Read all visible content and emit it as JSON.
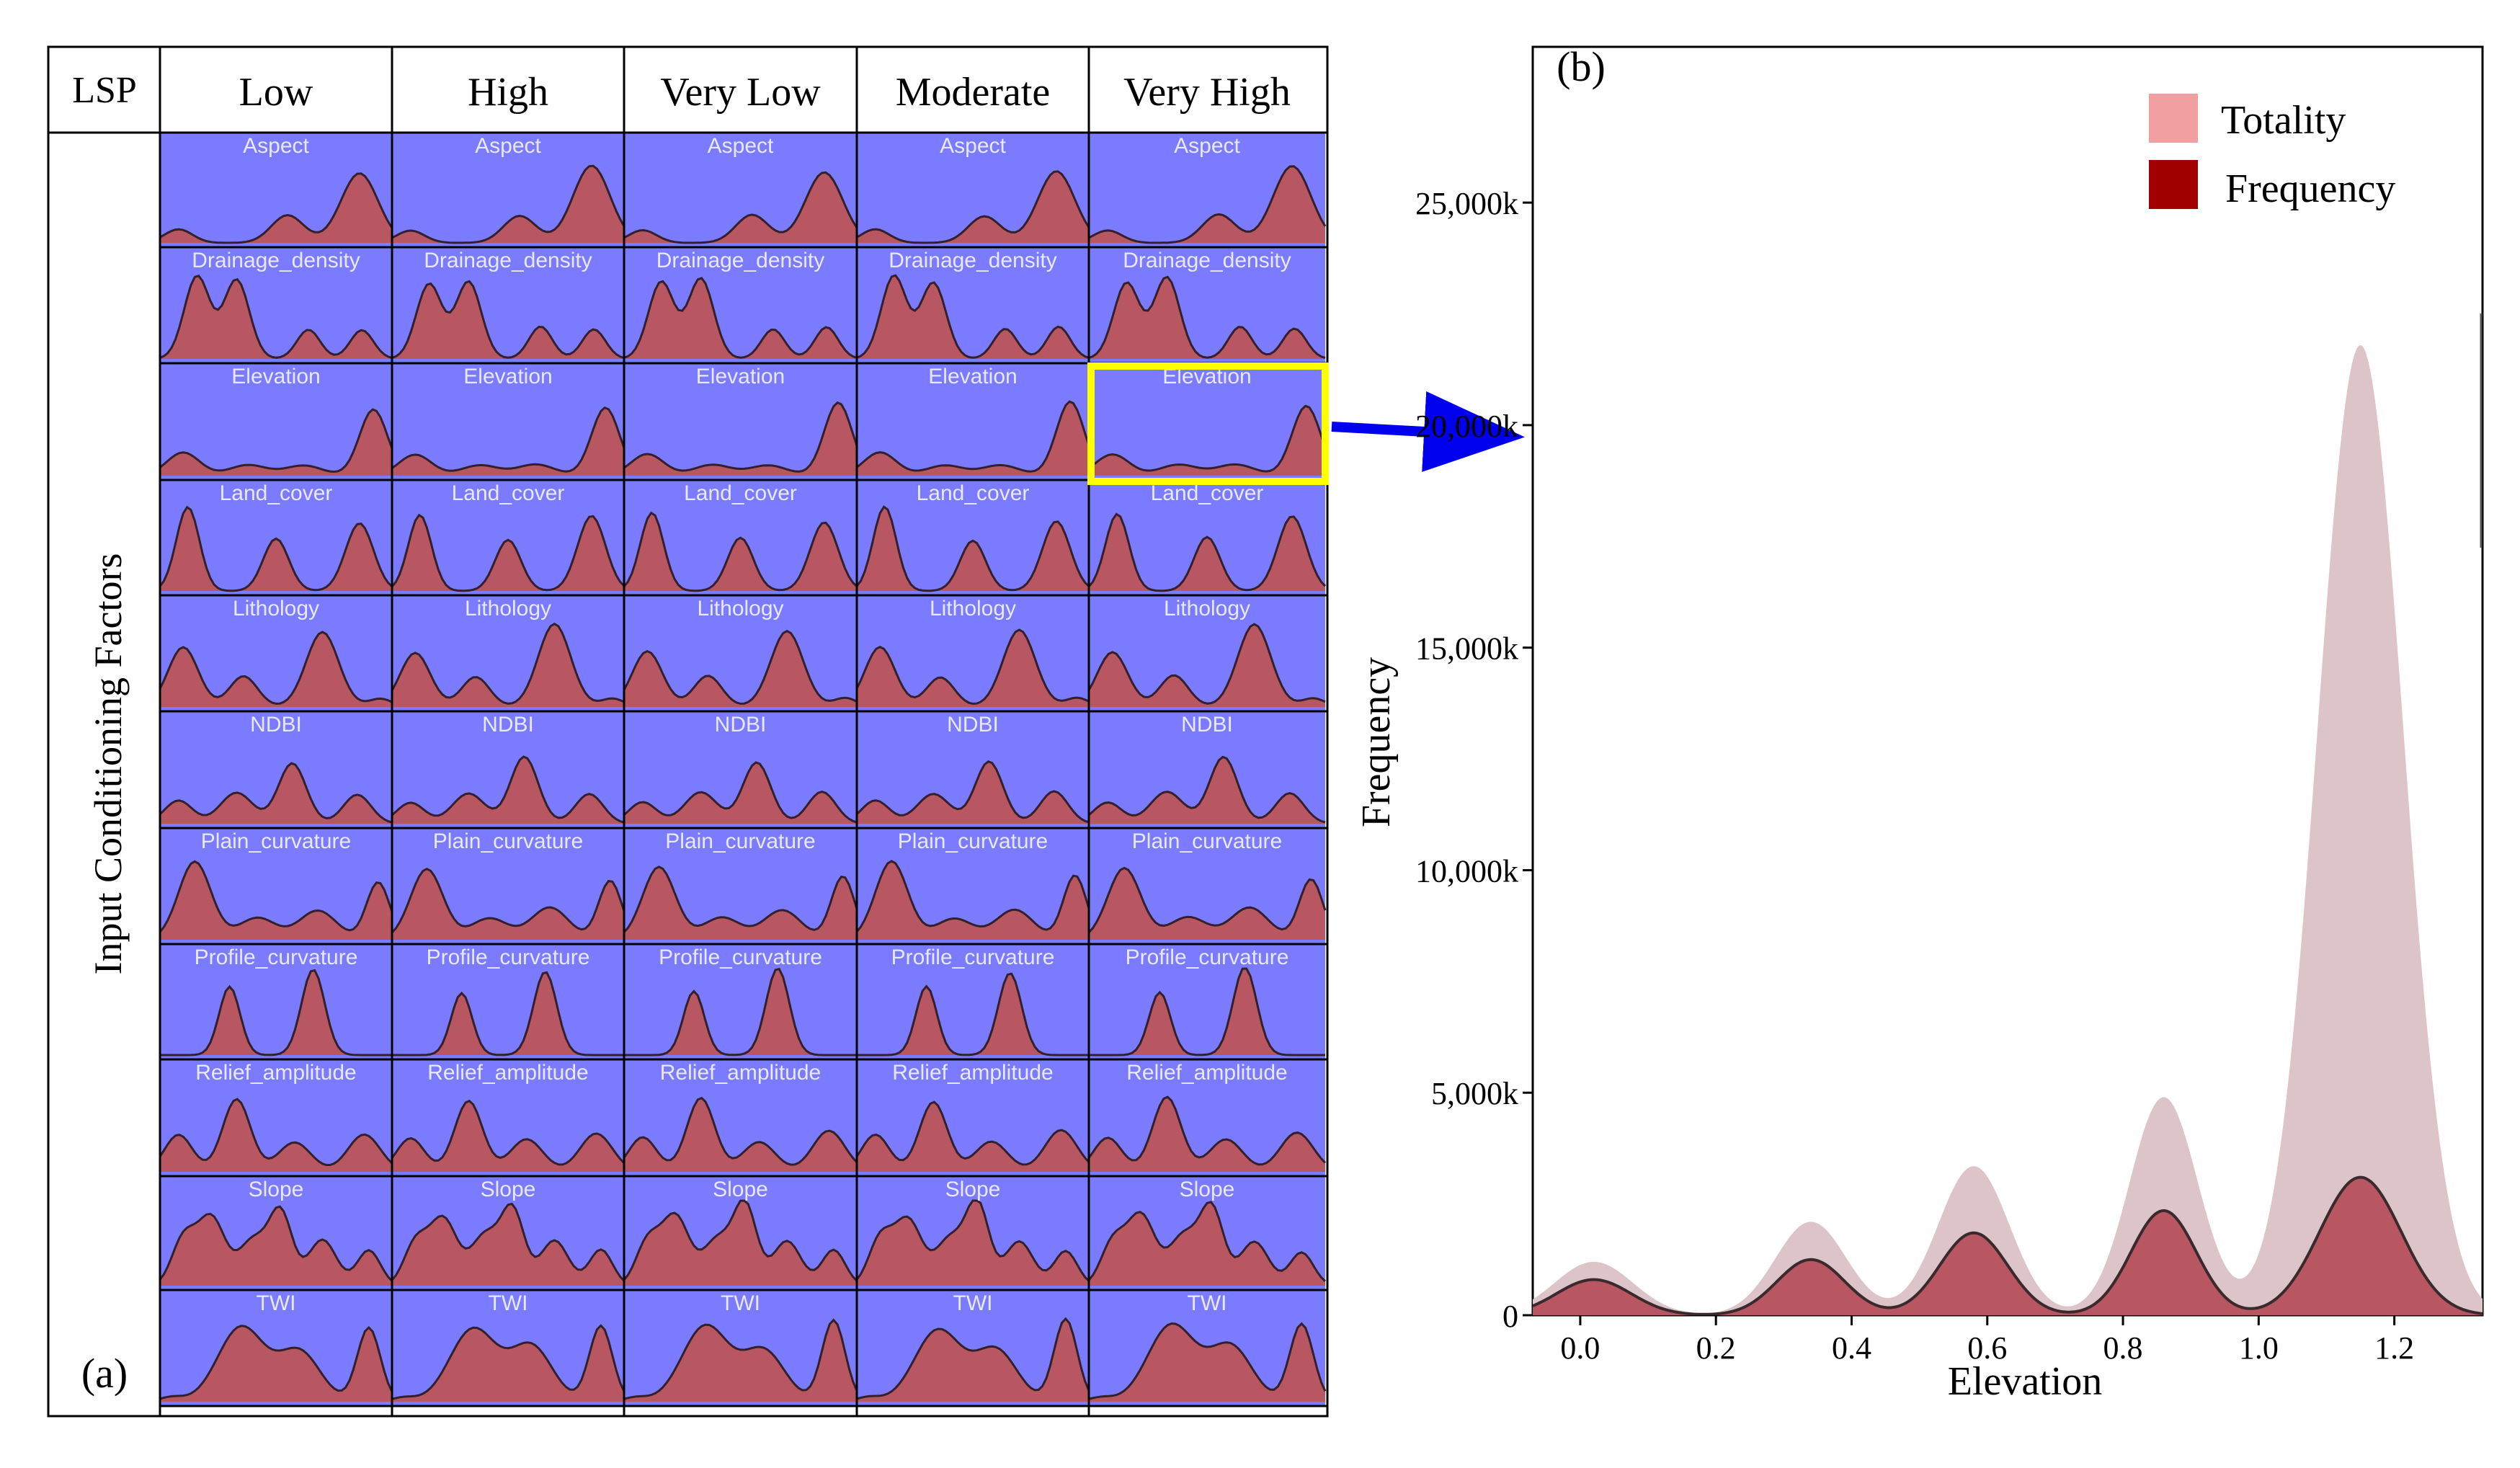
{
  "panel_a": {
    "label": "(a)",
    "corner_header": "LSP",
    "row_axis_label": "Input Conditioning Factors",
    "columns": [
      "Low",
      "High",
      "Very Low",
      "Moderate",
      "Very High"
    ],
    "rows": [
      "Aspect",
      "Drainage_density",
      "Elevation",
      "Land_cover",
      "Lithology",
      "NDBI",
      "Plain_curvature",
      "Profile_curvature",
      "Relief_amplitude",
      "Slope",
      "TWI"
    ],
    "highlighted_cell": {
      "row": "Elevation",
      "column": "Very High"
    },
    "colors": {
      "cell_bg": "#7b7bff",
      "fill": "#b85762",
      "line": "#33202a",
      "highlight": "#ffff00",
      "arrow": "#0000ee"
    }
  },
  "chart_data": {
    "type": "area",
    "label": "(b)",
    "title": "",
    "xlabel": "Elevation",
    "ylabel": "Frequency",
    "xlim": [
      -0.07,
      1.33
    ],
    "ylim": [
      0,
      28500
    ],
    "x_ticks": [
      0.0,
      0.2,
      0.4,
      0.6,
      0.8,
      1.0,
      1.2
    ],
    "x_tick_labels": [
      "0.0",
      "0.2",
      "0.4",
      "0.6",
      "0.8",
      "1.0",
      "1.2"
    ],
    "y_ticks": [
      0,
      5000,
      10000,
      15000,
      20000,
      25000
    ],
    "y_tick_labels": [
      "0",
      "5,000k",
      "10,000k",
      "15,000k",
      "20,000k",
      "25,000k"
    ],
    "legend": {
      "position": "top-right"
    },
    "series": [
      {
        "name": "Totality",
        "color": "#f0a0a0",
        "area_color": "#dcc4c8",
        "peaks": [
          {
            "x": 0.02,
            "y": 1200
          },
          {
            "x": 0.34,
            "y": 2100
          },
          {
            "x": 0.58,
            "y": 3350
          },
          {
            "x": 0.86,
            "y": 4900
          },
          {
            "x": 1.15,
            "y": 21800
          }
        ]
      },
      {
        "name": "Frequency",
        "color": "#a00000",
        "area_color": "#b85762",
        "peaks": [
          {
            "x": 0.02,
            "y": 800
          },
          {
            "x": 0.34,
            "y": 1250
          },
          {
            "x": 0.58,
            "y": 1850
          },
          {
            "x": 0.86,
            "y": 2350
          },
          {
            "x": 1.15,
            "y": 3100
          }
        ]
      }
    ]
  }
}
